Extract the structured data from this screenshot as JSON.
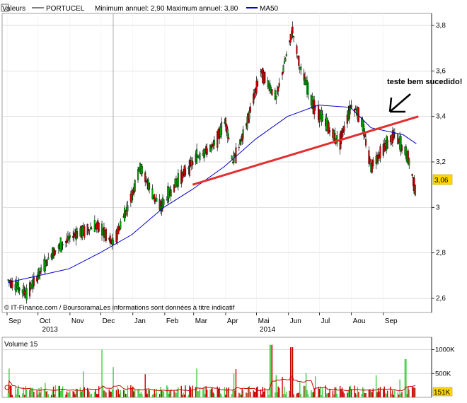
{
  "header": {
    "valeurs_label": "Valeurs",
    "ticker": "PORTUCEL",
    "minmax_text": "Minimum annuel: 2,90  Maximum annuel: 3,80",
    "ma_label": "MA50"
  },
  "volume_panel": {
    "title": "Volume 15"
  },
  "footer": {
    "source_text": "© IT-Finance.com / BoursoramaLes informations sont données à titre indicatif"
  },
  "annotation": {
    "text": "teste bem sucedido!"
  },
  "colors": {
    "up": "#00aa00",
    "down": "#cc0000",
    "ma": "#0000cc",
    "trendline": "#e03030",
    "grid": "#cfcfcf",
    "price_badge_bg": "#ffd700",
    "volume_bar": "#44cc44",
    "volume_line": "#cc0000"
  },
  "chart_data": [
    {
      "type": "candlestick",
      "title": "PORTUCEL",
      "y_ticks": [
        "2,6",
        "2,8",
        "3",
        "3,2",
        "3,4",
        "3,6",
        "3,8"
      ],
      "ylim": [
        2.56,
        3.88
      ],
      "last_value_label": "3,06",
      "x_month_labels": [
        "Sep",
        "Oct",
        "Nov",
        "Dec",
        "Jan",
        "Feb",
        "Mar",
        "Apr",
        "Mai",
        "Jun",
        "Jul",
        "Aou",
        "Sep"
      ],
      "x_year_labels": [
        "2013",
        "2014"
      ],
      "grid": true,
      "legend": "top-left",
      "key_points": [
        {
          "date": "2013-09-02",
          "price": 2.68
        },
        {
          "date": "2013-09-20",
          "price": 2.62
        },
        {
          "date": "2013-10-15",
          "price": 2.8
        },
        {
          "date": "2013-11-05",
          "price": 2.88
        },
        {
          "date": "2013-11-28",
          "price": 2.92
        },
        {
          "date": "2013-12-13",
          "price": 2.84
        },
        {
          "date": "2013-12-31",
          "price": 3.05
        },
        {
          "date": "2014-01-08",
          "price": 3.18
        },
        {
          "date": "2014-01-20",
          "price": 3.06
        },
        {
          "date": "2014-01-28",
          "price": 3.0
        },
        {
          "date": "2014-02-14",
          "price": 3.12
        },
        {
          "date": "2014-03-04",
          "price": 3.22
        },
        {
          "date": "2014-03-20",
          "price": 3.27
        },
        {
          "date": "2014-04-01",
          "price": 3.38
        },
        {
          "date": "2014-04-08",
          "price": 3.2
        },
        {
          "date": "2014-04-20",
          "price": 3.34
        },
        {
          "date": "2014-05-05",
          "price": 3.6
        },
        {
          "date": "2014-05-20",
          "price": 3.48
        },
        {
          "date": "2014-06-05",
          "price": 3.78
        },
        {
          "date": "2014-06-12",
          "price": 3.62
        },
        {
          "date": "2014-06-25",
          "price": 3.45
        },
        {
          "date": "2014-07-10",
          "price": 3.35
        },
        {
          "date": "2014-07-20",
          "price": 3.28
        },
        {
          "date": "2014-08-01",
          "price": 3.45
        },
        {
          "date": "2014-08-10",
          "price": 3.4
        },
        {
          "date": "2014-08-20",
          "price": 3.18
        },
        {
          "date": "2014-09-01",
          "price": 3.26
        },
        {
          "date": "2014-09-12",
          "price": 3.32
        },
        {
          "date": "2014-09-25",
          "price": 3.22
        },
        {
          "date": "2014-10-03",
          "price": 3.06
        }
      ],
      "ma50_points": [
        {
          "date": "2013-09-02",
          "value": 2.67
        },
        {
          "date": "2013-10-31",
          "value": 2.73
        },
        {
          "date": "2013-11-30",
          "value": 2.8
        },
        {
          "date": "2013-12-31",
          "value": 2.88
        },
        {
          "date": "2014-01-31",
          "value": 3.0
        },
        {
          "date": "2014-02-28",
          "value": 3.08
        },
        {
          "date": "2014-03-31",
          "value": 3.18
        },
        {
          "date": "2014-04-30",
          "value": 3.3
        },
        {
          "date": "2014-05-31",
          "value": 3.4
        },
        {
          "date": "2014-06-30",
          "value": 3.45
        },
        {
          "date": "2014-07-31",
          "value": 3.44
        },
        {
          "date": "2014-08-20",
          "value": 3.35
        },
        {
          "date": "2014-09-20",
          "value": 3.32
        },
        {
          "date": "2014-10-03",
          "value": 3.28
        }
      ],
      "trendline": [
        {
          "date": "2014-02-28",
          "value": 3.1
        },
        {
          "date": "2014-10-05",
          "value": 3.4
        }
      ]
    },
    {
      "type": "bar",
      "title": "Volume 15",
      "y_ticks": [
        "500K",
        "1000K"
      ],
      "last_value_label": "151K",
      "ylim": [
        0,
        1200000
      ],
      "spikes": [
        {
          "date": "2013-12-01",
          "volume": 1000000
        },
        {
          "date": "2014-05-15",
          "volume": 1100000
        },
        {
          "date": "2014-06-04",
          "volume": 1050000
        },
        {
          "date": "2014-09-22",
          "volume": 800000
        }
      ],
      "typical_volume": 150000
    }
  ]
}
